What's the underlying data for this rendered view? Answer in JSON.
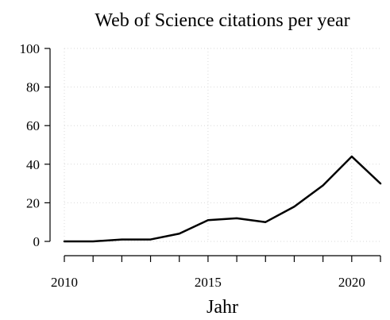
{
  "chart_data": {
    "type": "line",
    "title": "Web of Science citations per year",
    "xlabel": "Jahr",
    "ylabel": "",
    "x": [
      2010,
      2011,
      2012,
      2013,
      2014,
      2015,
      2016,
      2017,
      2018,
      2019,
      2020,
      2021
    ],
    "series": [
      {
        "values": [
          0,
          0,
          1,
          1,
          4,
          11,
          12,
          10,
          18,
          29,
          44,
          30
        ]
      }
    ],
    "xlim": [
      2010,
      2021
    ],
    "ylim": [
      0,
      100
    ],
    "x_ticks": [
      2010,
      2015,
      2020
    ],
    "x_minor_ticks": [
      2010,
      2011,
      2012,
      2013,
      2014,
      2015,
      2016,
      2017,
      2018,
      2019,
      2020,
      2021
    ],
    "y_ticks": [
      0,
      20,
      40,
      60,
      80,
      100
    ],
    "grid": true,
    "legend": "none",
    "line_color": "#000000",
    "grid_color": "#d9d9d9"
  }
}
